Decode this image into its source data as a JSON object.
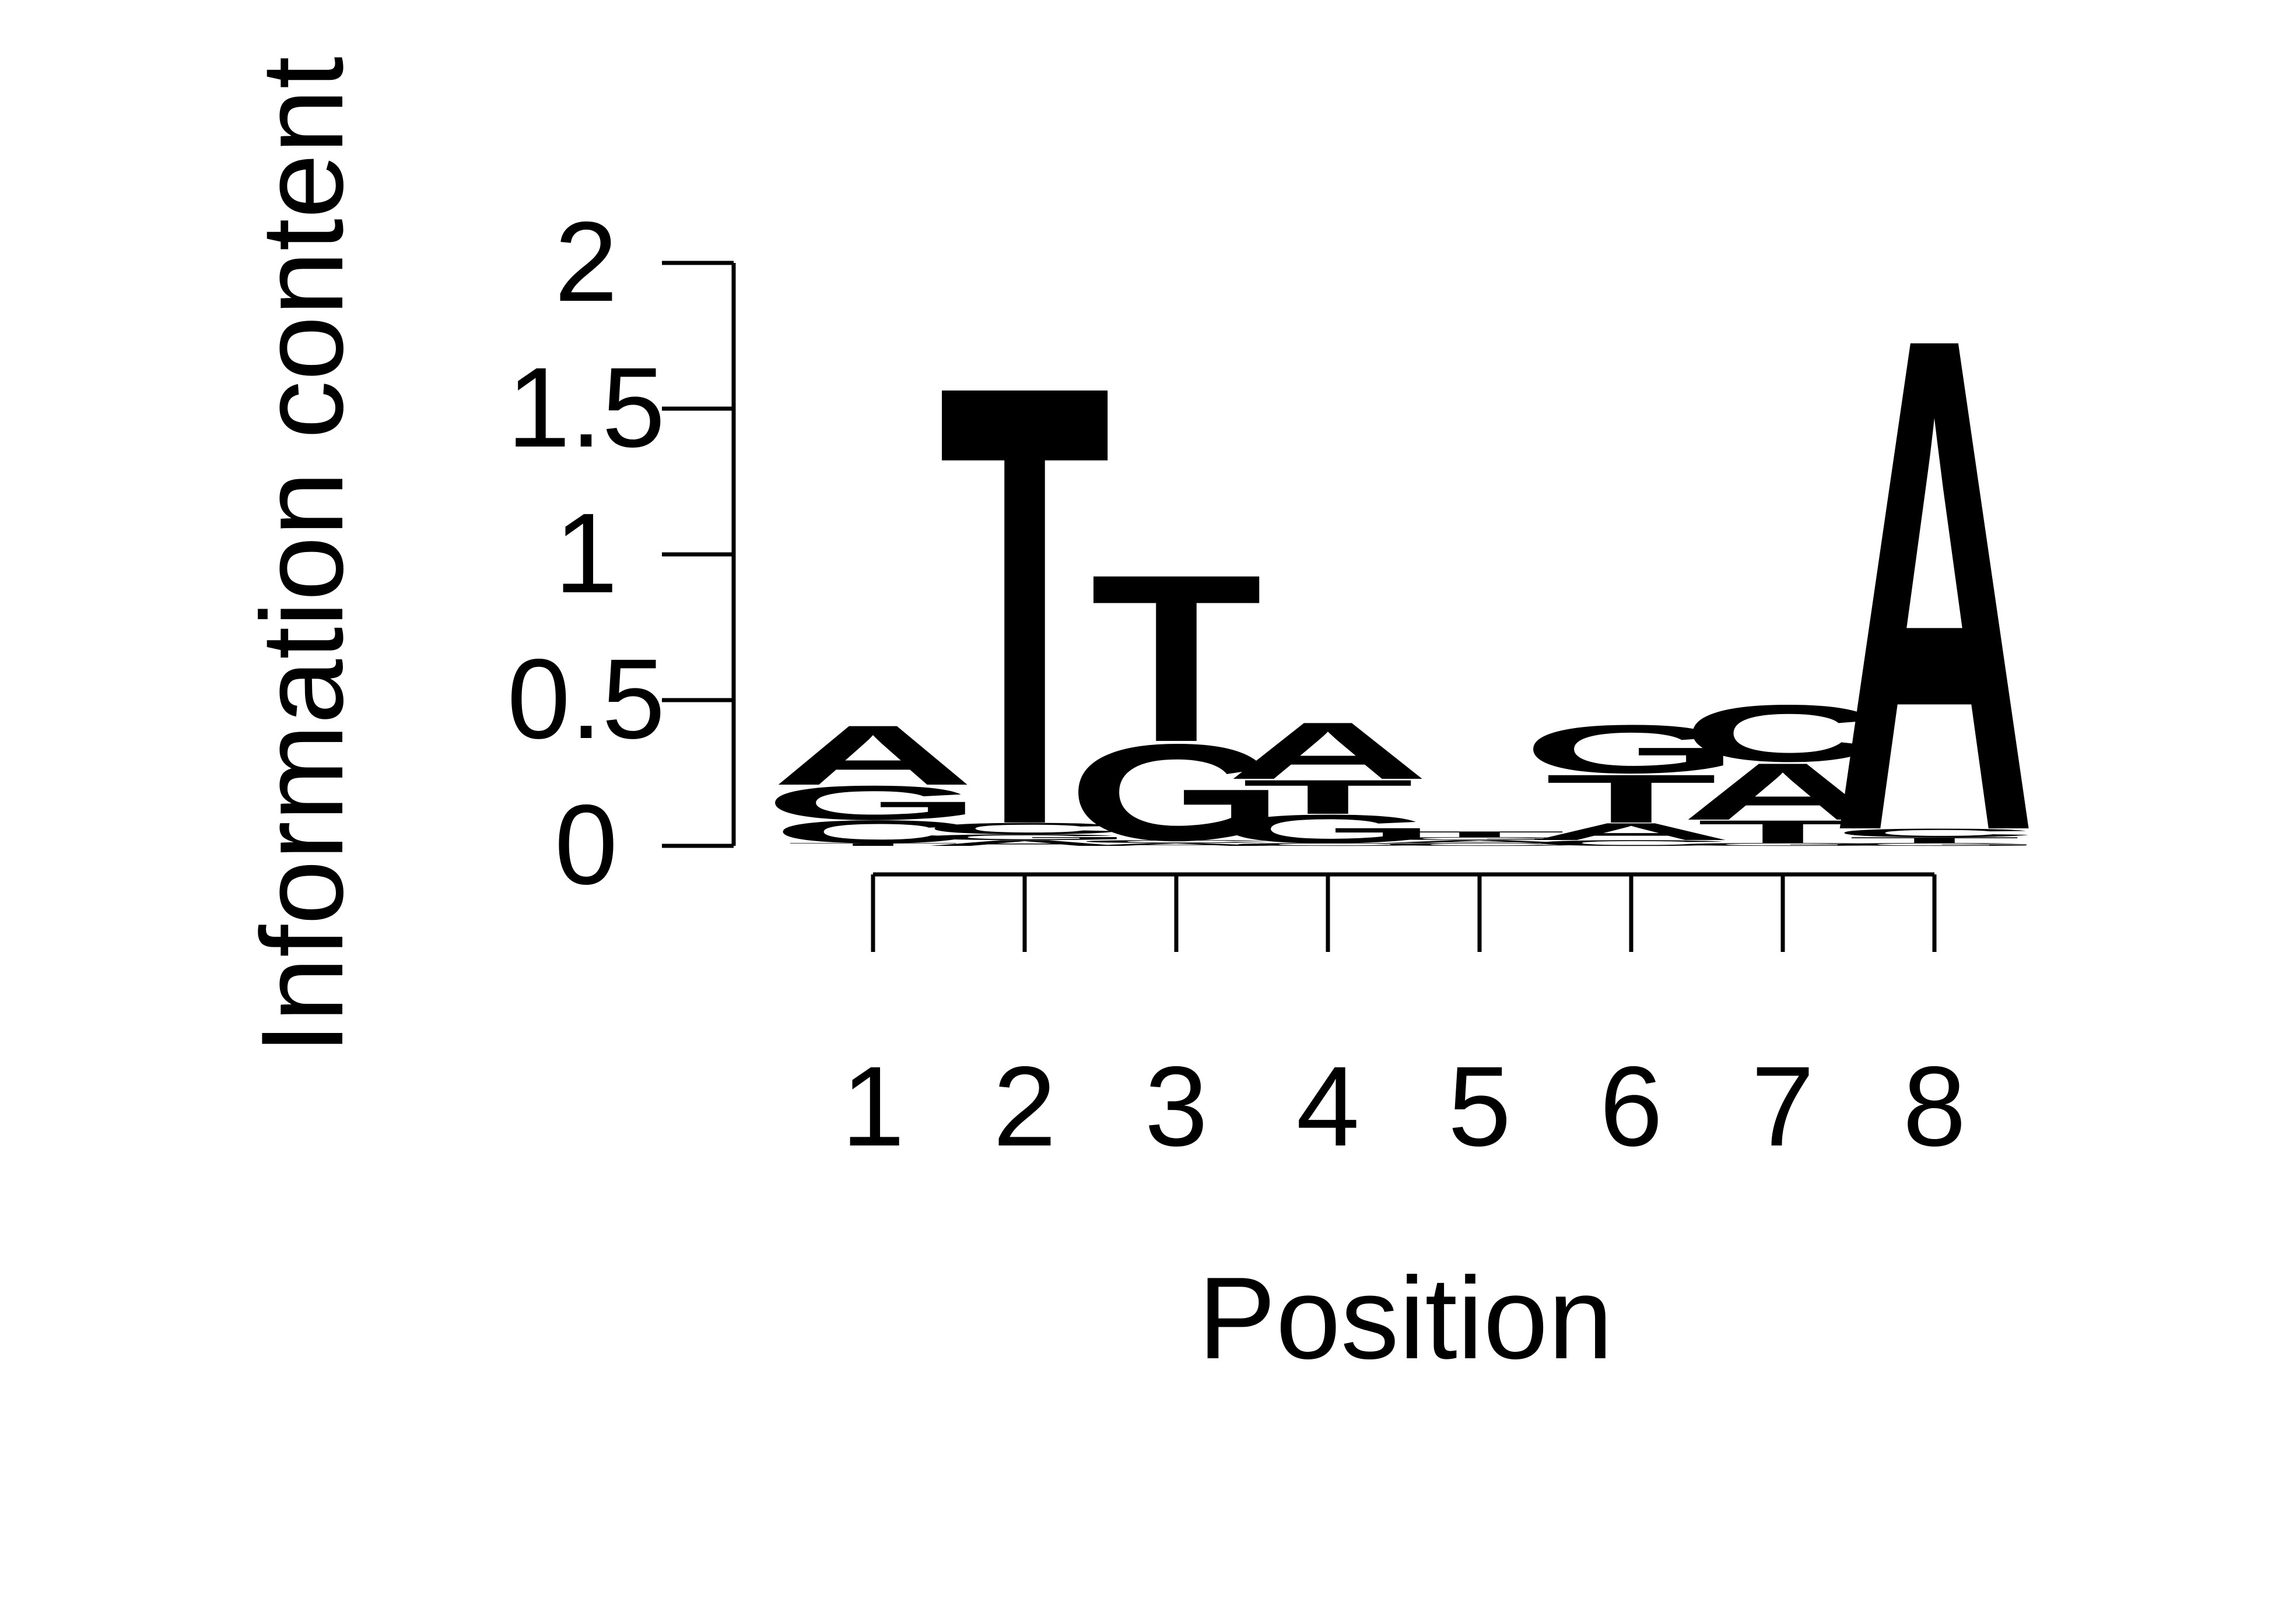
{
  "chart_data": {
    "type": "sequence-logo",
    "xlabel": "Position",
    "ylabel": "Information content",
    "ylim": [
      0,
      2
    ],
    "yticks": [
      "0",
      "0.5",
      "1",
      "1.5",
      "2"
    ],
    "positions": [
      "1",
      "2",
      "3",
      "4",
      "5",
      "6",
      "7",
      "8"
    ],
    "colors": {
      "A": "#00ff00",
      "C": "#0000ff",
      "G": "#ffa500",
      "T": "#ff0000"
    },
    "stacks": [
      [
        {
          "letter": "T",
          "height": 0.01
        },
        {
          "letter": "C",
          "height": 0.08
        },
        {
          "letter": "G",
          "height": 0.12
        },
        {
          "letter": "A",
          "height": 0.21
        }
      ],
      [
        {
          "letter": "A",
          "height": 0.02
        },
        {
          "letter": "G",
          "height": 0.02
        },
        {
          "letter": "C",
          "height": 0.04
        },
        {
          "letter": "T",
          "height": 1.55
        }
      ],
      [
        {
          "letter": "A",
          "height": 0.01
        },
        {
          "letter": "C",
          "height": 0.01
        },
        {
          "letter": "G",
          "height": 0.34
        },
        {
          "letter": "T",
          "height": 0.59
        }
      ],
      [
        {
          "letter": "C",
          "height": 0.01
        },
        {
          "letter": "G",
          "height": 0.1
        },
        {
          "letter": "T",
          "height": 0.12
        },
        {
          "letter": "A",
          "height": 0.2
        }
      ],
      [
        {
          "letter": "C",
          "height": 0.01
        },
        {
          "letter": "A",
          "height": 0.01
        },
        {
          "letter": "G",
          "height": 0.01
        },
        {
          "letter": "T",
          "height": 0.02
        }
      ],
      [
        {
          "letter": "C",
          "height": 0.02
        },
        {
          "letter": "A",
          "height": 0.06
        },
        {
          "letter": "T",
          "height": 0.17
        },
        {
          "letter": "G",
          "height": 0.17
        }
      ],
      [
        {
          "letter": "G",
          "height": 0.01
        },
        {
          "letter": "T",
          "height": 0.08
        },
        {
          "letter": "A",
          "height": 0.2
        },
        {
          "letter": "C",
          "height": 0.2
        }
      ],
      [
        {
          "letter": "G",
          "height": 0.01
        },
        {
          "letter": "T",
          "height": 0.02
        },
        {
          "letter": "C",
          "height": 0.03
        },
        {
          "letter": "A",
          "height": 1.74
        }
      ]
    ]
  }
}
